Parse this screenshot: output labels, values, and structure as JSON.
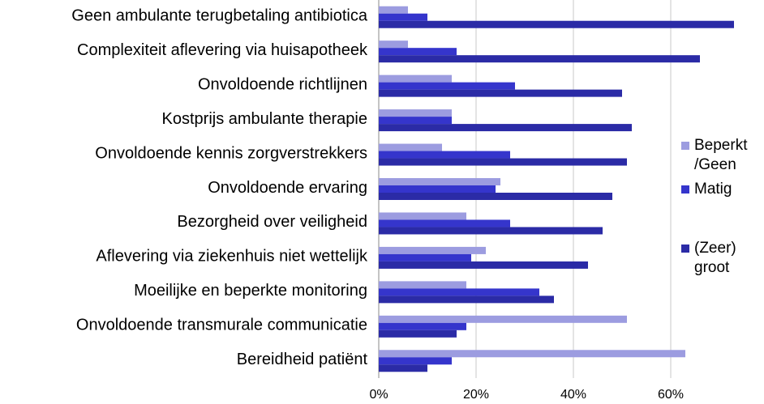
{
  "chart_data": {
    "type": "bar",
    "orientation": "horizontal",
    "categories": [
      "Geen ambulante terugbetaling antibiotica",
      "Complexiteit aflevering via huisapotheek",
      "Onvoldoende richtlijnen",
      "Kostprijs ambulante therapie",
      "Onvoldoende kennis zorgverstrekkers",
      "Onvoldoende ervaring",
      "Bezorgheid over veiligheid",
      "Aflevering via ziekenhuis niet wettelijk",
      "Moeilijke en beperkte monitoring",
      "Onvoldoende transmurale communicatie",
      "Bereidheid patiënt"
    ],
    "series": [
      {
        "name": "Beperkt /Geen",
        "color": "#9c9ce0",
        "values": [
          6,
          6,
          15,
          15,
          13,
          25,
          18,
          22,
          18,
          51,
          63
        ]
      },
      {
        "name": "Matig",
        "color": "#3535cc",
        "values": [
          10,
          16,
          28,
          15,
          27,
          24,
          27,
          19,
          33,
          18,
          15
        ]
      },
      {
        "name": "(Zeer) groot",
        "color": "#2b2ba6",
        "values": [
          73,
          66,
          50,
          52,
          51,
          48,
          46,
          43,
          36,
          16,
          10
        ]
      }
    ],
    "xlim": [
      0,
      75
    ],
    "xticks": [
      {
        "value": 0,
        "label": "0%"
      },
      {
        "value": 20,
        "label": "20%"
      },
      {
        "value": 40,
        "label": "40%"
      },
      {
        "value": 60,
        "label": "60%"
      }
    ],
    "grid": true,
    "legend": "right"
  }
}
